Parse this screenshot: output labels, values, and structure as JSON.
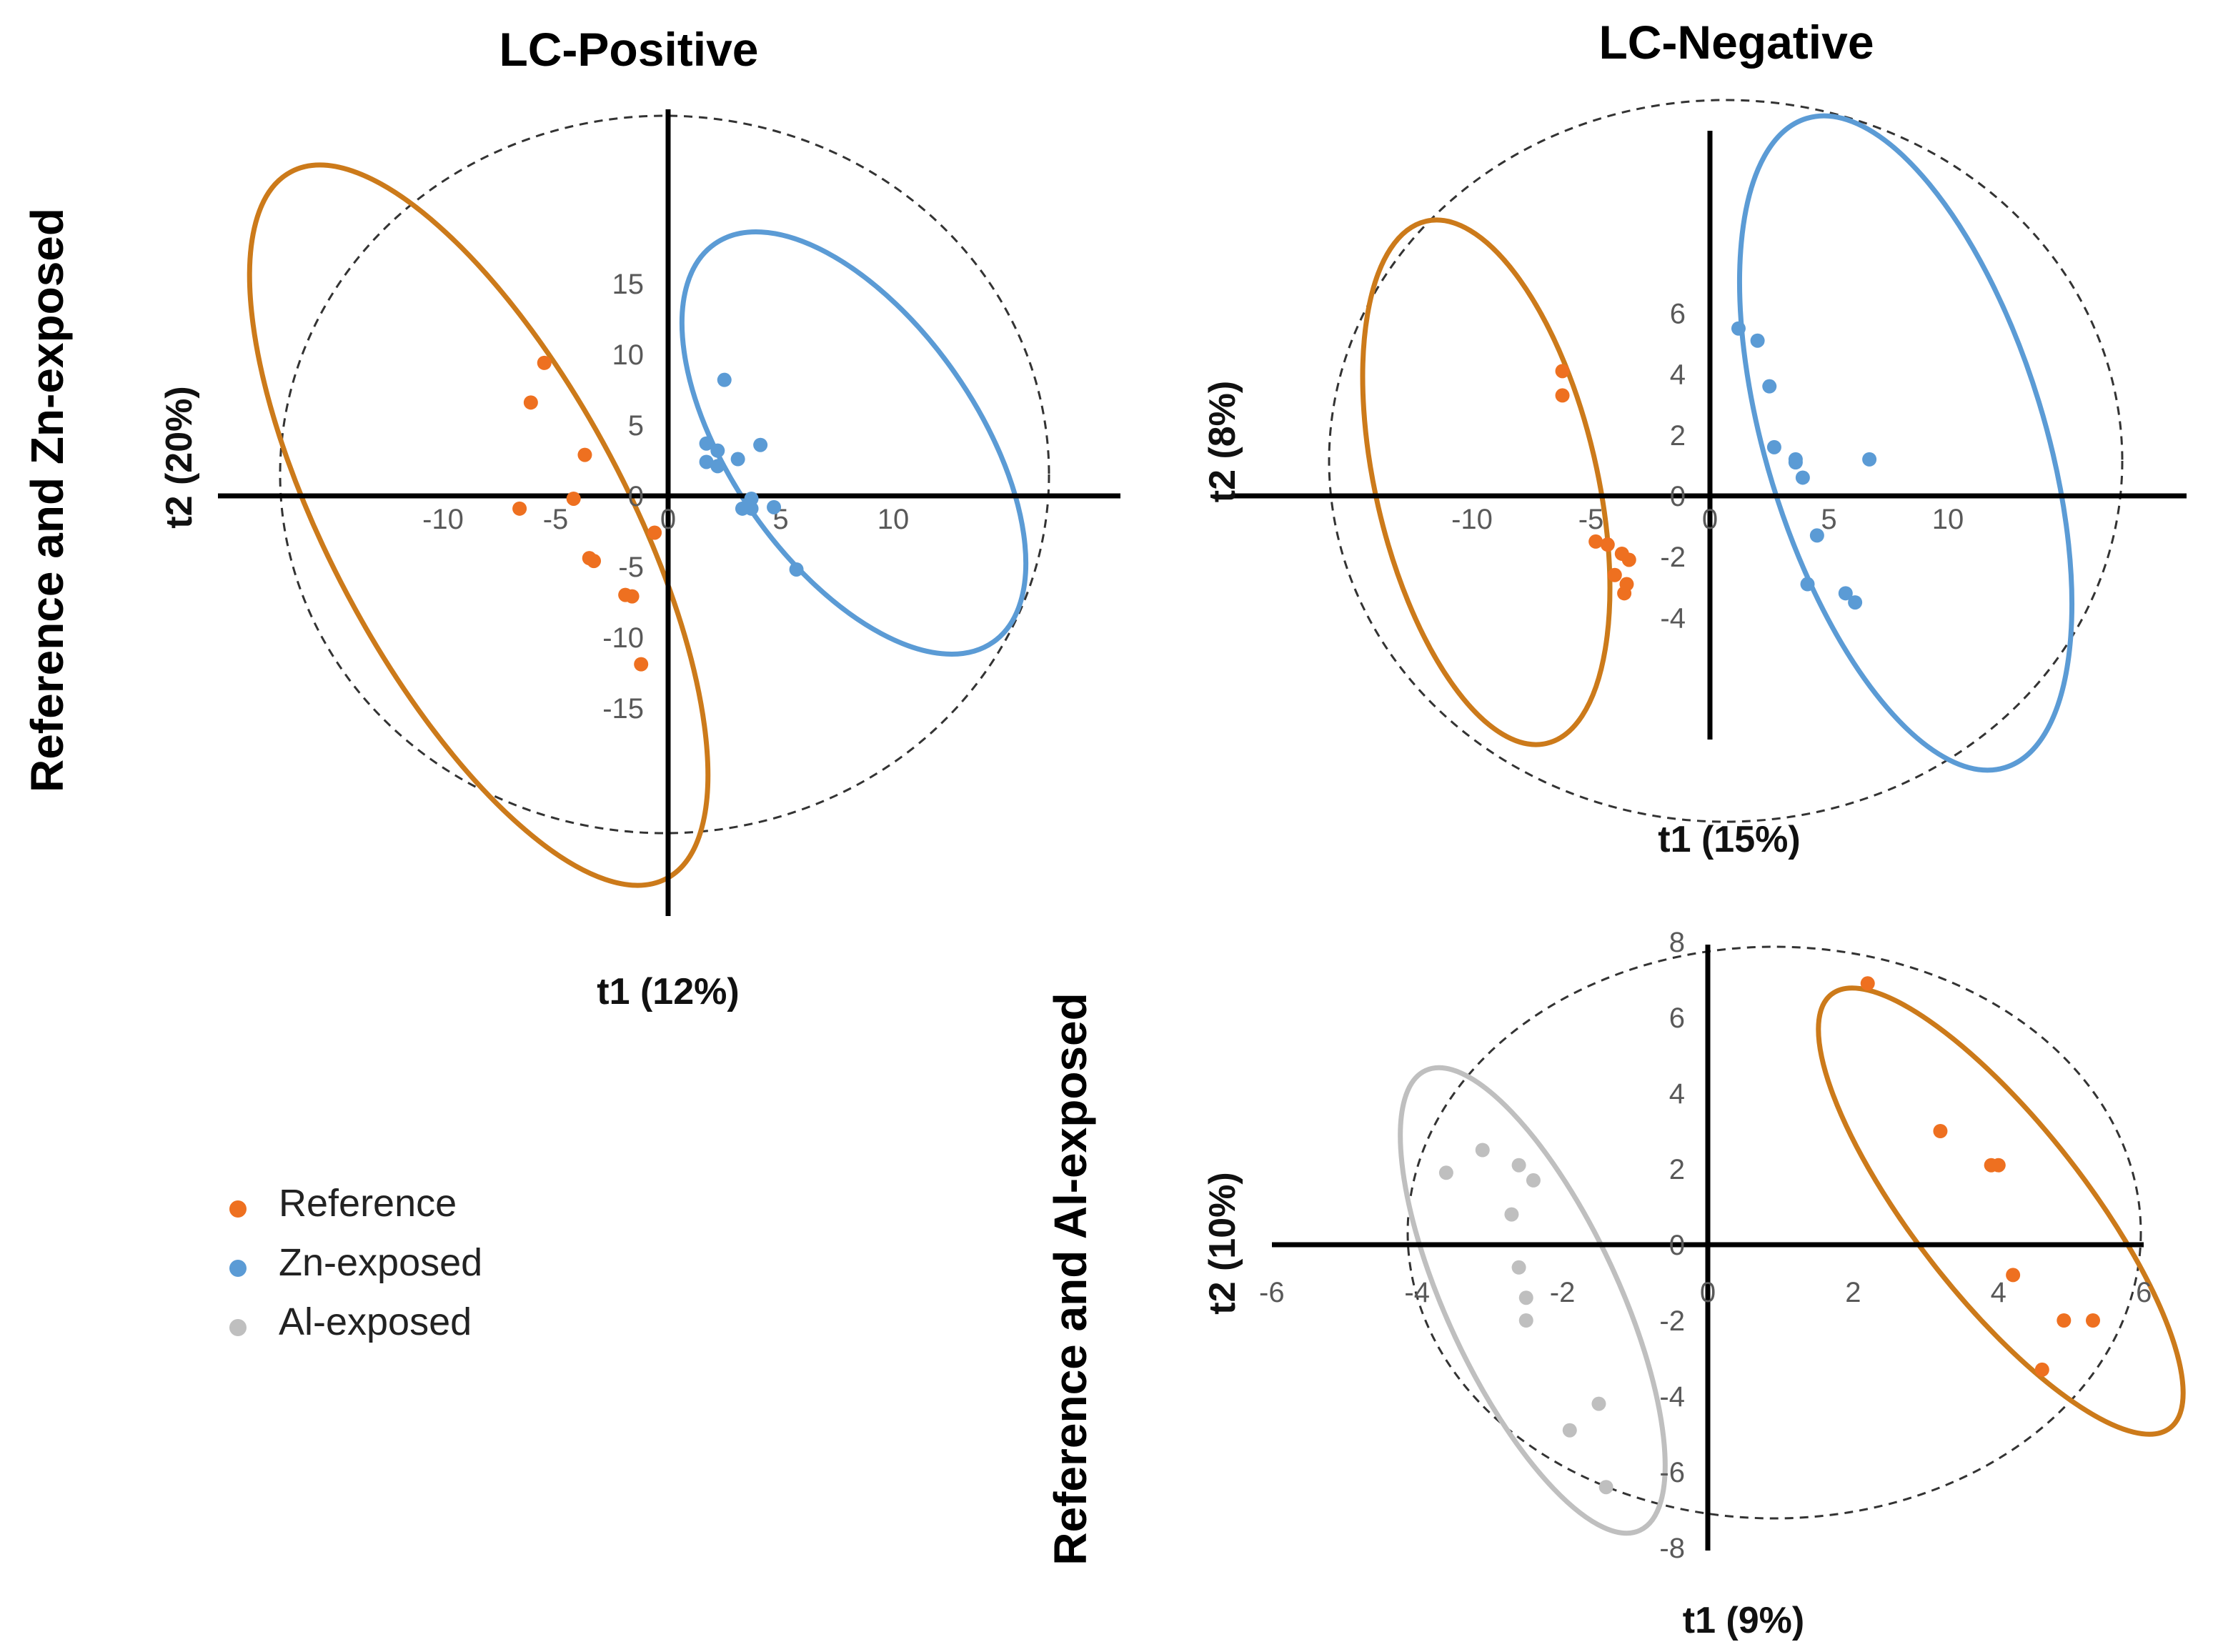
{
  "colors": {
    "reference_point": "#ee7020",
    "zn_point": "#5b9bd5",
    "al_point": "#bfbfbf",
    "reference_ellipse": "#cc7a1a",
    "zn_ellipse": "#5b9bd5",
    "al_ellipse": "#bfbfbf",
    "axis": "#000000",
    "tick_text": "#595959"
  },
  "row_labels": {
    "top": "Reference and Zn-exposed",
    "bottom": "Reference and Al-exposed"
  },
  "legend": [
    {
      "label": "Reference",
      "color": "#ee7020"
    },
    {
      "label": "Zn-exposed",
      "color": "#5b9bd5"
    },
    {
      "label": "Al-exposed",
      "color": "#bfbfbf"
    }
  ],
  "chart_data": [
    {
      "type": "scatter",
      "title": "LC-Positive",
      "xlabel": "t1 (12%)",
      "ylabel": "t2 (20%)",
      "xlim": [
        -10,
        10
      ],
      "ylim": [
        -15,
        15
      ],
      "xticks": [
        -10,
        -5,
        0,
        5,
        10
      ],
      "yticks": [
        -15,
        -10,
        -5,
        0,
        5,
        10,
        15
      ],
      "grid": false,
      "hotelling_ellipse": "dashed",
      "series": [
        {
          "name": "Reference",
          "color_key": "reference_point",
          "x": [
            -5.5,
            -6.1,
            -3.7,
            -4.2,
            -6.6,
            -3.5,
            -3.3,
            -0.6,
            -1.9,
            -1.6,
            -1.2
          ],
          "y": [
            9.4,
            6.6,
            2.9,
            -0.2,
            -0.9,
            -4.4,
            -4.6,
            -2.6,
            -7.0,
            -7.1,
            -11.9
          ]
        },
        {
          "name": "Zn-exposed",
          "color_key": "zn_point",
          "x": [
            2.5,
            1.7,
            2.2,
            4.1,
            3.1,
            1.7,
            2.2,
            3.7,
            3.3,
            3.7,
            4.7,
            5.7
          ],
          "y": [
            8.2,
            3.7,
            3.2,
            3.6,
            2.6,
            2.4,
            2.1,
            -0.2,
            -0.9,
            -0.9,
            -0.8,
            -5.2
          ]
        }
      ]
    },
    {
      "type": "scatter",
      "title": "LC-Negative",
      "xlabel": "t1 (15%)",
      "ylabel": "t2 (8%)",
      "xlim": [
        -10,
        10
      ],
      "ylim": [
        -4,
        6
      ],
      "xticks": [
        -10,
        -5,
        0,
        5,
        10
      ],
      "yticks": [
        -4,
        -2,
        0,
        2,
        4,
        6
      ],
      "grid": false,
      "hotelling_ellipse": "dashed",
      "series": [
        {
          "name": "Reference",
          "color_key": "reference_point",
          "x": [
            -6.2,
            -6.2,
            -4.8,
            -4.3,
            -3.7,
            -3.4,
            -4.0,
            -3.5,
            -3.6
          ],
          "y": [
            4.1,
            3.3,
            -1.5,
            -1.6,
            -1.9,
            -2.1,
            -2.6,
            -2.9,
            -3.2
          ]
        },
        {
          "name": "Zn-exposed",
          "color_key": "zn_point",
          "x": [
            1.2,
            2.0,
            2.5,
            2.7,
            3.6,
            3.6,
            3.9,
            6.7,
            4.5,
            4.1,
            5.7,
            6.1
          ],
          "y": [
            5.5,
            5.1,
            3.6,
            1.6,
            1.2,
            1.1,
            0.6,
            1.2,
            -1.3,
            -2.9,
            -3.2,
            -3.5
          ]
        }
      ]
    },
    {
      "type": "scatter",
      "title": "",
      "xlabel": "t1 (9%)",
      "ylabel": "t2 (10%)",
      "xlim": [
        -6,
        6
      ],
      "ylim": [
        -8,
        8
      ],
      "xticks": [
        -6,
        -4,
        -2,
        0,
        2,
        4,
        6
      ],
      "yticks": [
        -8,
        -6,
        -4,
        -2,
        0,
        2,
        4,
        6,
        8
      ],
      "grid": false,
      "hotelling_ellipse": "dashed",
      "series": [
        {
          "name": "Reference",
          "color_key": "reference_point",
          "x": [
            2.2,
            3.2,
            3.9,
            4.0,
            4.2,
            4.9,
            5.3,
            4.6
          ],
          "y": [
            6.9,
            3.0,
            2.1,
            2.1,
            -0.8,
            -2.0,
            -2.0,
            -3.3
          ]
        },
        {
          "name": "Al-exposed",
          "color_key": "al_point",
          "x": [
            -3.1,
            -3.6,
            -2.6,
            -2.4,
            -2.7,
            -2.6,
            -2.5,
            -2.5,
            -1.5,
            -1.9,
            -1.4
          ],
          "y": [
            2.5,
            1.9,
            2.1,
            1.7,
            0.8,
            -0.6,
            -1.4,
            -2.0,
            -4.2,
            -4.9,
            -6.4
          ]
        }
      ]
    }
  ]
}
